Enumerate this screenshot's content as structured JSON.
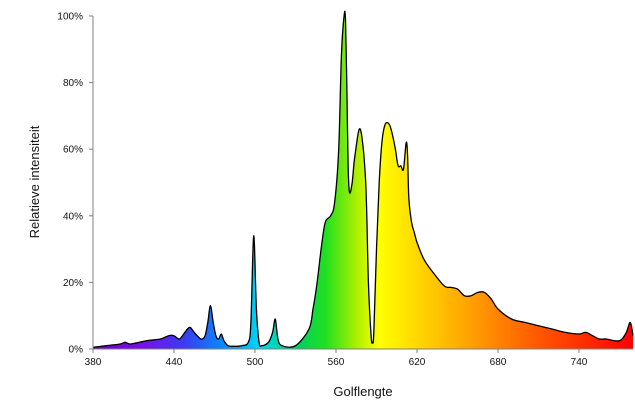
{
  "chart_data": {
    "type": "area",
    "title": "",
    "xlabel": "Golflengte",
    "ylabel": "Relatieve intensiteit",
    "xlim": [
      380,
      780
    ],
    "ylim": [
      0,
      100
    ],
    "x_ticks": [
      380,
      440,
      500,
      560,
      620,
      680,
      740
    ],
    "y_ticks": [
      0,
      20,
      40,
      60,
      80,
      100
    ],
    "x_tick_labels": [
      "380",
      "440",
      "500",
      "560",
      "620",
      "680",
      "740"
    ],
    "y_tick_labels": [
      "0%",
      "20%",
      "40%",
      "60%",
      "80%",
      "100%"
    ],
    "grid": false,
    "legend": "none",
    "fill": "spectrum gradient (violet to red by wavelength)",
    "line_color": "#000000",
    "series": [
      {
        "x": [
          380,
          390,
          400,
          404,
          408,
          420,
          430,
          436,
          440,
          444,
          448,
          450,
          452,
          455,
          460,
          463,
          465,
          467,
          469,
          471,
          473,
          475,
          477,
          480,
          485,
          490,
          495,
          497,
          499,
          501,
          503,
          505,
          510,
          513,
          515,
          517,
          520,
          530,
          540,
          543,
          546,
          549,
          552,
          556,
          559,
          562,
          564,
          566,
          567,
          568,
          569,
          570,
          572,
          574,
          578,
          582,
          584,
          586,
          587,
          588,
          590,
          592,
          594,
          596,
          598,
          600,
          602,
          604,
          606,
          608,
          610,
          612,
          613,
          614,
          616,
          618,
          620,
          625,
          630,
          640,
          645,
          650,
          655,
          660,
          665,
          670,
          675,
          680,
          690,
          700,
          710,
          720,
          730,
          740,
          745,
          750,
          755,
          760,
          770,
          775,
          778,
          780
        ],
        "y": [
          0.5,
          1,
          1.5,
          2,
          1.5,
          2.5,
          3,
          4,
          4,
          3,
          5,
          6,
          6.5,
          5,
          3,
          4,
          8,
          13,
          8,
          4,
          3,
          4.5,
          2.5,
          1,
          0.8,
          1,
          2,
          8,
          34,
          12,
          2,
          1,
          2,
          5,
          9,
          3,
          1,
          1,
          6,
          12,
          20,
          30,
          38,
          40,
          44,
          60,
          88,
          100,
          99,
          80,
          55,
          47,
          50,
          58,
          66,
          50,
          20,
          4,
          2,
          5,
          30,
          50,
          62,
          67,
          68,
          67,
          64,
          60,
          55,
          55,
          54,
          62,
          58,
          45,
          38,
          35,
          32,
          27,
          24,
          19,
          18.5,
          18,
          16,
          16,
          17,
          17,
          15,
          12,
          9,
          8,
          7,
          6,
          5,
          4.5,
          5,
          4,
          3,
          3,
          2.5,
          5,
          8,
          4
        ]
      }
    ]
  }
}
